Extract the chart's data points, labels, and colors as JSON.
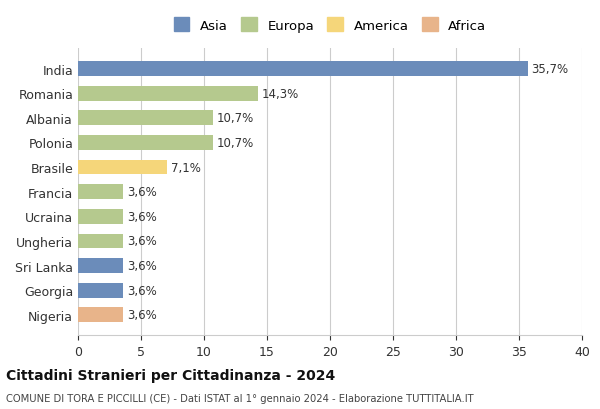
{
  "countries": [
    "India",
    "Romania",
    "Albania",
    "Polonia",
    "Brasile",
    "Francia",
    "Ucraina",
    "Ungheria",
    "Sri Lanka",
    "Georgia",
    "Nigeria"
  ],
  "values": [
    35.7,
    14.3,
    10.7,
    10.7,
    7.1,
    3.6,
    3.6,
    3.6,
    3.6,
    3.6,
    3.6
  ],
  "labels": [
    "35,7%",
    "14,3%",
    "10,7%",
    "10,7%",
    "7,1%",
    "3,6%",
    "3,6%",
    "3,6%",
    "3,6%",
    "3,6%",
    "3,6%"
  ],
  "colors": [
    "#6b8cba",
    "#b5c98e",
    "#b5c98e",
    "#b5c98e",
    "#f5d67a",
    "#b5c98e",
    "#b5c98e",
    "#b5c98e",
    "#6b8cba",
    "#6b8cba",
    "#e8b48a"
  ],
  "legend_labels": [
    "Asia",
    "Europa",
    "America",
    "Africa"
  ],
  "legend_colors": [
    "#6b8cba",
    "#b5c98e",
    "#f5d67a",
    "#e8b48a"
  ],
  "title": "Cittadini Stranieri per Cittadinanza - 2024",
  "subtitle": "COMUNE DI TORA E PICCILLI (CE) - Dati ISTAT al 1° gennaio 2024 - Elaborazione TUTTITALIA.IT",
  "xlim": [
    0,
    40
  ],
  "xticks": [
    0,
    5,
    10,
    15,
    20,
    25,
    30,
    35,
    40
  ],
  "background_color": "#ffffff",
  "grid_color": "#cccccc"
}
